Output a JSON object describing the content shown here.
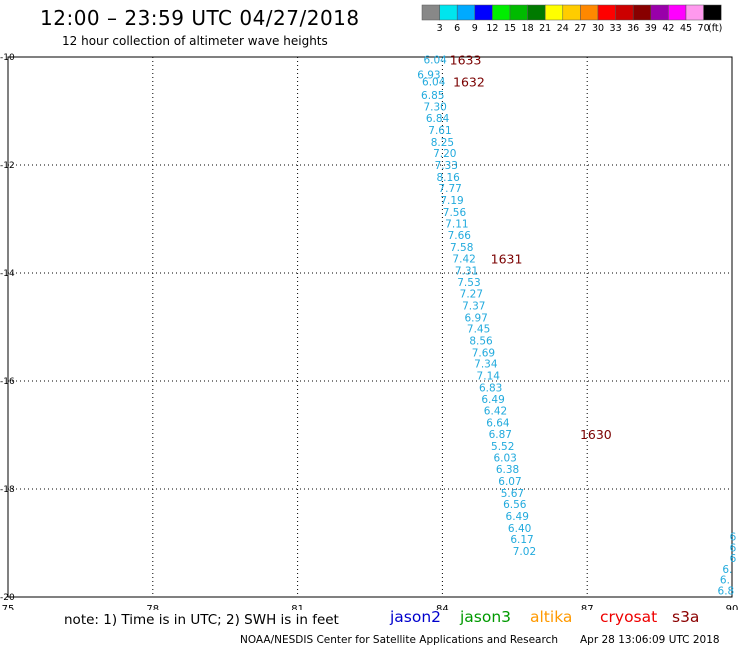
{
  "header": {
    "title": "12:00 – 23:59 UTC 04/27/2018",
    "subtitle": "12 hour collection of altimeter wave heights"
  },
  "legend": {
    "unit": "(ft)",
    "items": [
      {
        "label": "3",
        "color": "#888888"
      },
      {
        "label": "6",
        "color": "#00e5ee"
      },
      {
        "label": "9",
        "color": "#00aaff"
      },
      {
        "label": "12",
        "color": "#0000ff"
      },
      {
        "label": "15",
        "color": "#00ee00"
      },
      {
        "label": "18",
        "color": "#00bb00"
      },
      {
        "label": "21",
        "color": "#007a00"
      },
      {
        "label": "24",
        "color": "#ffff00"
      },
      {
        "label": "27",
        "color": "#ffcc00"
      },
      {
        "label": "30",
        "color": "#ff8800"
      },
      {
        "label": "33",
        "color": "#ff0000"
      },
      {
        "label": "36",
        "color": "#cc0000"
      },
      {
        "label": "39",
        "color": "#880000"
      },
      {
        "label": "42",
        "color": "#9900aa"
      },
      {
        "label": "45",
        "color": "#ff00ff"
      },
      {
        "label": "70",
        "color": "#ff99ee"
      },
      {
        "label": "",
        "color": "#000000"
      }
    ]
  },
  "map": {
    "lon_range": [
      75,
      90
    ],
    "lat_range": [
      -20,
      -10
    ],
    "lon_ticks": [
      "75",
      "78",
      "81",
      "84",
      "87",
      "90"
    ],
    "lat_ticks": [
      "-10",
      "-12",
      "-14",
      "-16",
      "-18",
      "-20"
    ],
    "track_color": "#22aadd",
    "time_color": "#7a0000",
    "points": [
      {
        "lon": 83.85,
        "lat": -10.05,
        "value": "6.04"
      },
      {
        "lon": 83.72,
        "lat": -10.32,
        "value": "6.93"
      },
      {
        "lon": 83.82,
        "lat": -10.45,
        "value": "6.04"
      },
      {
        "lon": 83.8,
        "lat": -10.7,
        "value": "6.85"
      },
      {
        "lon": 83.85,
        "lat": -10.92,
        "value": "7.30"
      },
      {
        "lon": 83.9,
        "lat": -11.13,
        "value": "6.84"
      },
      {
        "lon": 83.95,
        "lat": -11.35,
        "value": "7.61"
      },
      {
        "lon": 84.0,
        "lat": -11.57,
        "value": "8.25"
      },
      {
        "lon": 84.05,
        "lat": -11.78,
        "value": "7.20"
      },
      {
        "lon": 84.08,
        "lat": -12.0,
        "value": "7.33"
      },
      {
        "lon": 84.12,
        "lat": -12.22,
        "value": "8.16"
      },
      {
        "lon": 84.16,
        "lat": -12.43,
        "value": "7.77"
      },
      {
        "lon": 84.2,
        "lat": -12.65,
        "value": "7.19"
      },
      {
        "lon": 84.25,
        "lat": -12.87,
        "value": "7.56"
      },
      {
        "lon": 84.3,
        "lat": -13.08,
        "value": "7.11"
      },
      {
        "lon": 84.35,
        "lat": -13.3,
        "value": "7.66"
      },
      {
        "lon": 84.4,
        "lat": -13.52,
        "value": "7.58"
      },
      {
        "lon": 84.45,
        "lat": -13.73,
        "value": "7.42"
      },
      {
        "lon": 84.5,
        "lat": -13.95,
        "value": "7.31"
      },
      {
        "lon": 84.55,
        "lat": -14.17,
        "value": "7.53"
      },
      {
        "lon": 84.6,
        "lat": -14.38,
        "value": "7.27"
      },
      {
        "lon": 84.65,
        "lat": -14.6,
        "value": "7.37"
      },
      {
        "lon": 84.7,
        "lat": -14.82,
        "value": "6.97"
      },
      {
        "lon": 84.75,
        "lat": -15.03,
        "value": "7.45"
      },
      {
        "lon": 84.8,
        "lat": -15.25,
        "value": "8.56"
      },
      {
        "lon": 84.85,
        "lat": -15.47,
        "value": "7.69"
      },
      {
        "lon": 84.9,
        "lat": -15.68,
        "value": "7.34"
      },
      {
        "lon": 84.95,
        "lat": -15.9,
        "value": "7.14"
      },
      {
        "lon": 85.0,
        "lat": -16.12,
        "value": "6.83"
      },
      {
        "lon": 85.05,
        "lat": -16.33,
        "value": "6.49"
      },
      {
        "lon": 85.1,
        "lat": -16.55,
        "value": "6.42"
      },
      {
        "lon": 85.15,
        "lat": -16.77,
        "value": "6.64"
      },
      {
        "lon": 85.2,
        "lat": -16.98,
        "value": "6.87"
      },
      {
        "lon": 85.25,
        "lat": -17.2,
        "value": "5.52"
      },
      {
        "lon": 85.3,
        "lat": -17.42,
        "value": "6.03"
      },
      {
        "lon": 85.35,
        "lat": -17.63,
        "value": "6.38"
      },
      {
        "lon": 85.4,
        "lat": -17.85,
        "value": "6.07"
      },
      {
        "lon": 85.45,
        "lat": -18.07,
        "value": "5.67"
      },
      {
        "lon": 85.5,
        "lat": -18.28,
        "value": "6.56"
      },
      {
        "lon": 85.55,
        "lat": -18.5,
        "value": "6.49"
      },
      {
        "lon": 85.6,
        "lat": -18.72,
        "value": "6.40"
      },
      {
        "lon": 85.65,
        "lat": -18.93,
        "value": "6.17"
      },
      {
        "lon": 85.7,
        "lat": -19.15,
        "value": "7.02"
      }
    ],
    "edge_points": [
      {
        "lon": 89.95,
        "lat": -18.88,
        "value": "6"
      },
      {
        "lon": 89.95,
        "lat": -19.08,
        "value": "6"
      },
      {
        "lon": 89.95,
        "lat": -19.28,
        "value": "6"
      },
      {
        "lon": 89.8,
        "lat": -19.48,
        "value": "6."
      },
      {
        "lon": 89.75,
        "lat": -19.68,
        "value": "6."
      },
      {
        "lon": 89.7,
        "lat": -19.88,
        "value": "6.8"
      }
    ],
    "times": [
      {
        "lon": 84.15,
        "lat": -10.05,
        "value": "1633"
      },
      {
        "lon": 84.22,
        "lat": -10.45,
        "value": "1632"
      },
      {
        "lon": 85.0,
        "lat": -13.73,
        "value": "1631"
      },
      {
        "lon": 86.85,
        "lat": -16.98,
        "value": "1630"
      }
    ]
  },
  "note": "note:  1) Time is in UTC;  2) SWH is in feet",
  "satellites": [
    {
      "name": "jason2",
      "color": "#0000cc"
    },
    {
      "name": "jason3",
      "color": "#009900"
    },
    {
      "name": "altika",
      "color": "#ff9900"
    },
    {
      "name": "cryosat",
      "color": "#ee0000"
    },
    {
      "name": "s3a",
      "color": "#8b0000"
    }
  ],
  "footer": {
    "center": "NOAA/NESDIS Center for Satellite Applications and Research",
    "timestamp": "Apr 28 13:06:09 UTC 2018"
  }
}
